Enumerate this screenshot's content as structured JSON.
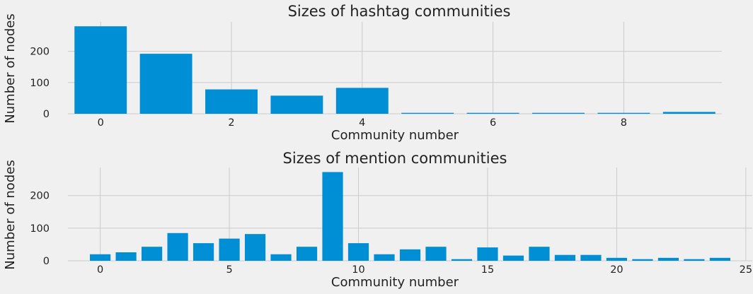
{
  "chart_data": [
    {
      "type": "bar",
      "title": "Sizes of hashtag communities",
      "xlabel": "Community number",
      "ylabel": "Number of nodes",
      "x": [
        0,
        1,
        2,
        3,
        4,
        5,
        6,
        7,
        8,
        9
      ],
      "values": [
        280,
        192,
        78,
        58,
        83,
        3,
        3,
        3,
        3,
        6
      ],
      "xticks": [
        0,
        2,
        4,
        6,
        8
      ],
      "yticks": [
        0,
        100,
        200
      ],
      "xlim": [
        -0.5,
        9.5
      ],
      "ylim": [
        0,
        294
      ],
      "grid": true,
      "color": "#008fd5"
    },
    {
      "type": "bar",
      "title": "Sizes of mention communities",
      "xlabel": "Community number",
      "ylabel": "Number of nodes",
      "x": [
        0,
        1,
        2,
        3,
        4,
        5,
        6,
        7,
        8,
        9,
        10,
        11,
        12,
        13,
        14,
        15,
        16,
        17,
        18,
        19,
        20,
        21,
        22,
        23,
        24
      ],
      "values": [
        20,
        26,
        43,
        85,
        54,
        68,
        82,
        20,
        43,
        272,
        54,
        20,
        35,
        43,
        5,
        41,
        16,
        43,
        18,
        18,
        9,
        5,
        9,
        5,
        9
      ],
      "xticks": [
        0,
        5,
        10,
        15,
        20,
        25
      ],
      "yticks": [
        0,
        100,
        200
      ],
      "xlim": [
        -1.25,
        25.25
      ],
      "ylim": [
        0,
        286
      ],
      "grid": true,
      "color": "#008fd5"
    }
  ]
}
